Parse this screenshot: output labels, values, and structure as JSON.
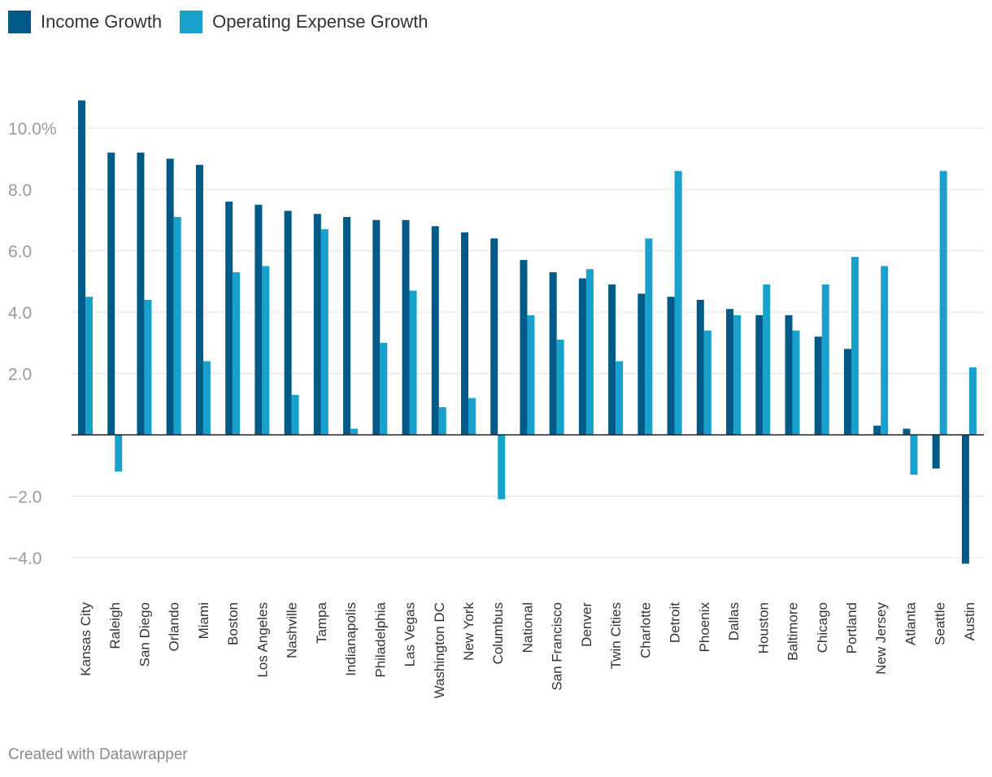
{
  "chart_data": {
    "type": "bar",
    "categories": [
      "Kansas City",
      "Raleigh",
      "San Diego",
      "Orlando",
      "Miami",
      "Boston",
      "Los Angeles",
      "Nashville",
      "Tampa",
      "Indianapolis",
      "Philadelphia",
      "Las Vegas",
      "Washington DC",
      "New York",
      "Columbus",
      "National",
      "San Francisco",
      "Denver",
      "Twin Cities",
      "Charlotte",
      "Detroit",
      "Phoenix",
      "Dallas",
      "Houston",
      "Baltimore",
      "Chicago",
      "Portland",
      "New Jersey",
      "Atlanta",
      "Seattle",
      "Austin"
    ],
    "series": [
      {
        "name": "Income Growth",
        "color": "#005a87",
        "values": [
          10.9,
          9.2,
          9.2,
          9.0,
          8.8,
          7.6,
          7.5,
          7.3,
          7.2,
          7.1,
          7.0,
          7.0,
          6.8,
          6.6,
          6.4,
          5.7,
          5.3,
          5.1,
          4.9,
          4.6,
          4.5,
          4.4,
          4.1,
          3.9,
          3.9,
          3.2,
          2.8,
          0.3,
          0.2,
          -1.1,
          -4.2
        ]
      },
      {
        "name": "Operating Expense Growth",
        "color": "#18a1cd",
        "values": [
          4.5,
          -1.2,
          4.4,
          7.1,
          2.4,
          5.3,
          5.5,
          1.3,
          6.7,
          0.2,
          3.0,
          4.7,
          0.9,
          1.2,
          -2.1,
          3.9,
          3.1,
          5.4,
          2.4,
          6.4,
          8.6,
          3.4,
          3.9,
          4.9,
          3.4,
          4.9,
          5.8,
          5.5,
          -1.3,
          8.6,
          2.2
        ]
      }
    ],
    "yticks": [
      {
        "value": 10,
        "label": "10.0%"
      },
      {
        "value": 8,
        "label": "8.0"
      },
      {
        "value": 6,
        "label": "6.0"
      },
      {
        "value": 4,
        "label": "4.0"
      },
      {
        "value": 2,
        "label": "2.0"
      },
      {
        "value": -2,
        "label": "−2.0"
      },
      {
        "value": -4,
        "label": "−4.0"
      }
    ],
    "ylim": [
      -4.8,
      11.0
    ],
    "grid": true,
    "legend": "top-left"
  },
  "footer": "Created with Datawrapper"
}
